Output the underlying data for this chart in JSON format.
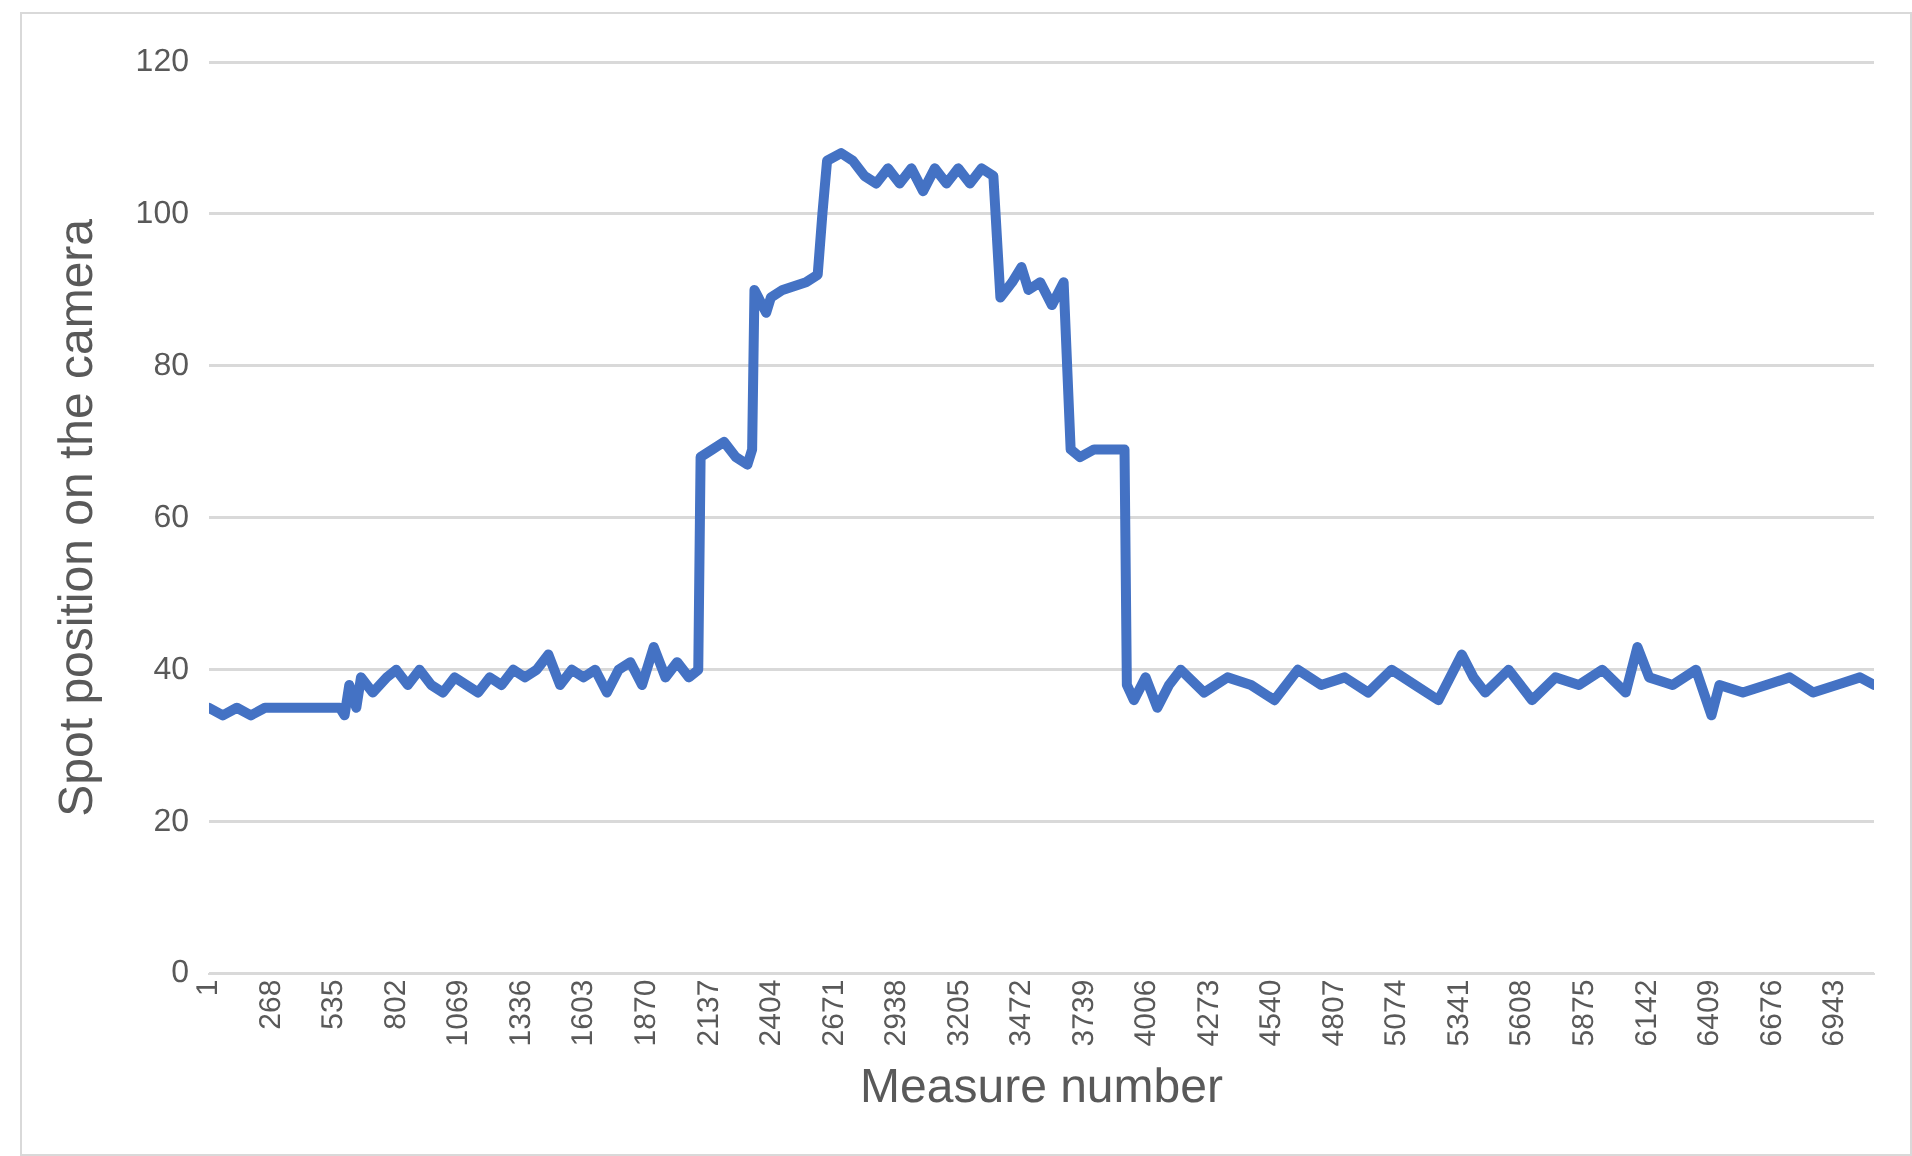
{
  "chart_data": {
    "type": "line",
    "xlabel": "Measure number",
    "ylabel": "Spot position on the camera",
    "x": [
      1,
      60,
      120,
      180,
      240,
      560,
      580,
      600,
      630,
      650,
      700,
      760,
      800,
      850,
      900,
      950,
      1000,
      1050,
      1100,
      1150,
      1200,
      1250,
      1300,
      1350,
      1400,
      1450,
      1500,
      1550,
      1600,
      1650,
      1700,
      1750,
      1800,
      1850,
      1900,
      1950,
      2000,
      2050,
      2090,
      2100,
      2150,
      2200,
      2250,
      2300,
      2320,
      2330,
      2380,
      2400,
      2450,
      2550,
      2600,
      2620,
      2640,
      2700,
      2750,
      2800,
      2850,
      2900,
      2950,
      3000,
      3050,
      3100,
      3150,
      3200,
      3250,
      3300,
      3350,
      3380,
      3430,
      3470,
      3500,
      3550,
      3600,
      3650,
      3680,
      3720,
      3780,
      3850,
      3910,
      3920,
      3950,
      4000,
      4050,
      4100,
      4150,
      4250,
      4350,
      4450,
      4550,
      4650,
      4750,
      4850,
      4950,
      5050,
      5150,
      5250,
      5350,
      5400,
      5450,
      5550,
      5650,
      5750,
      5850,
      5950,
      6050,
      6100,
      6150,
      6250,
      6350,
      6416,
      6450,
      6550,
      6650,
      6750,
      6850,
      6950,
      7050,
      7110
    ],
    "series": [
      {
        "color": "#4472c4",
        "values": [
          35,
          34,
          35,
          34,
          35,
          35,
          34,
          38,
          35,
          39,
          37,
          39,
          40,
          38,
          40,
          38,
          37,
          39,
          38,
          37,
          39,
          38,
          40,
          39,
          40,
          42,
          38,
          40,
          39,
          40,
          37,
          40,
          41,
          38,
          43,
          39,
          41,
          39,
          40,
          68,
          69,
          70,
          68,
          67,
          69,
          90,
          87,
          89,
          90,
          91,
          92,
          100,
          107,
          108,
          107,
          105,
          104,
          106,
          104,
          106,
          103,
          106,
          104,
          106,
          104,
          106,
          105,
          89,
          91,
          93,
          90,
          91,
          88,
          91,
          69,
          68,
          69,
          69,
          69,
          38,
          36,
          39,
          35,
          38,
          40,
          37,
          39,
          38,
          36,
          40,
          38,
          39,
          37,
          40,
          38,
          36,
          42,
          39,
          37,
          40,
          36,
          39,
          38,
          40,
          37,
          43,
          39,
          38,
          40,
          34,
          38,
          37,
          38,
          39,
          37,
          38,
          39,
          38
        ]
      }
    ],
    "xlim": [
      1,
      7110
    ],
    "xticks": [
      1,
      268,
      535,
      802,
      1069,
      1336,
      1603,
      1870,
      2137,
      2404,
      2671,
      2938,
      3205,
      3472,
      3739,
      4006,
      4273,
      4540,
      4807,
      5074,
      5341,
      5608,
      5875,
      6142,
      6409,
      6676,
      6943
    ],
    "ylim": [
      0,
      120
    ],
    "yticks": [
      0,
      20,
      40,
      60,
      80,
      100,
      120
    ],
    "grid": "y",
    "legend": false,
    "marker": "none",
    "line_style": "solid"
  }
}
